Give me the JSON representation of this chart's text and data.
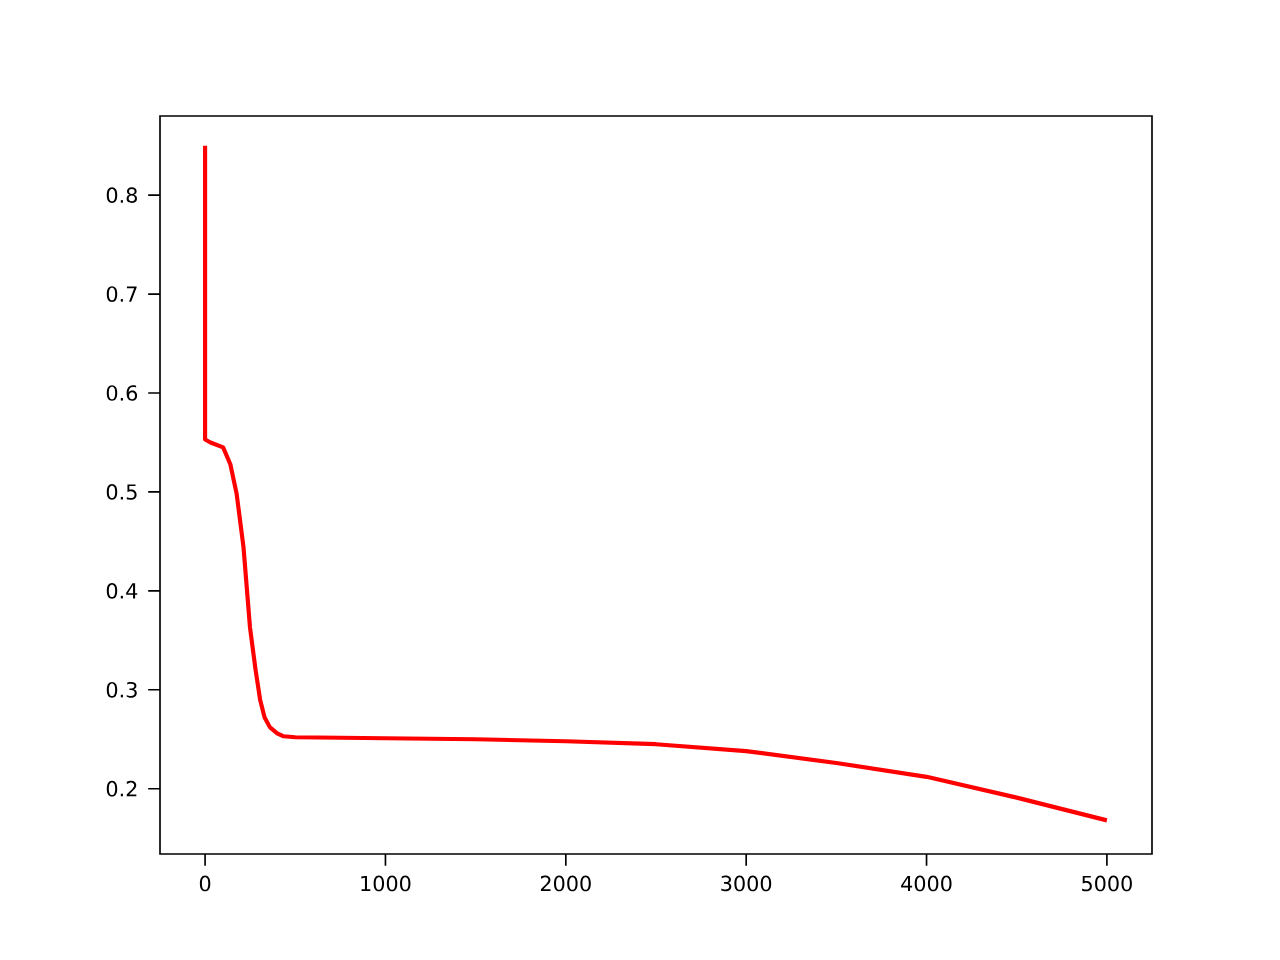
{
  "chart_data": {
    "type": "line",
    "series": [
      {
        "color": "#ff0000",
        "x": [
          0,
          0,
          30,
          100,
          140,
          175,
          213,
          249,
          280,
          305,
          330,
          360,
          400,
          435,
          500,
          1000,
          1500,
          2000,
          2500,
          3000,
          3500,
          4000,
          4500,
          5000
        ],
        "values": [
          0.85,
          0.553,
          0.55,
          0.545,
          0.528,
          0.498,
          0.444,
          0.363,
          0.32,
          0.29,
          0.272,
          0.262,
          0.256,
          0.253,
          0.252,
          0.251,
          0.25,
          0.248,
          0.245,
          0.238,
          0.226,
          0.212,
          0.191,
          0.168
        ]
      }
    ],
    "xlim": [
      -250,
      5250
    ],
    "ylim": [
      0.134,
      0.88
    ],
    "xticks": [
      0,
      1000,
      2000,
      3000,
      4000,
      5000
    ],
    "yticks": [
      0.2,
      0.3,
      0.4,
      0.5,
      0.6,
      0.7,
      0.8
    ],
    "grid": false
  }
}
